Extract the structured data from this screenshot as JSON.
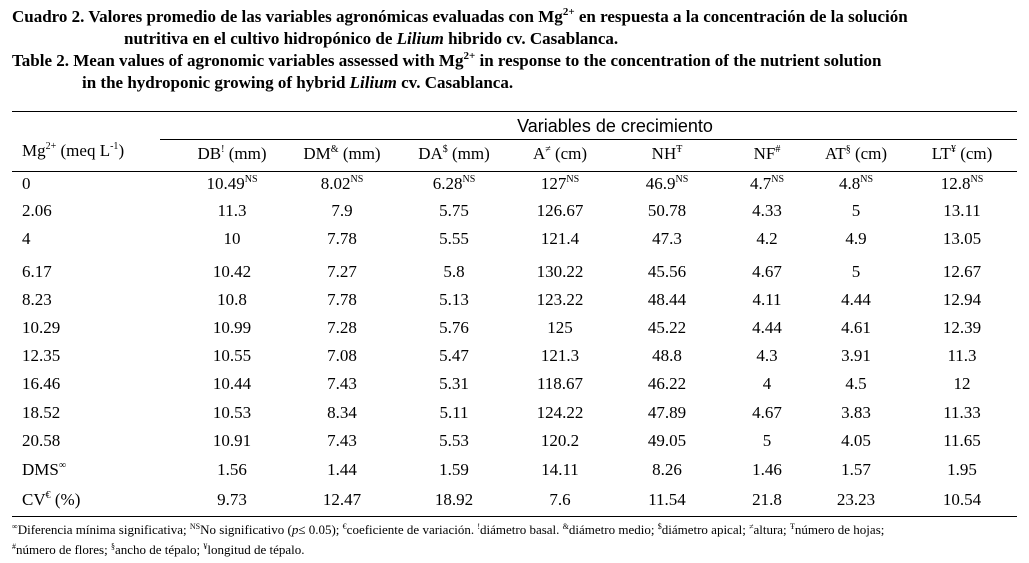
{
  "title": {
    "es_line1": "Cuadro 2. Valores promedio de las variables agronómicas evaluadas con Mg",
    "es_line1_sup": "2+",
    "es_line1_tail": " en respuesta a la concentración de la solución",
    "es_line2_pre": "nutritiva en el cultivo hidropónico de ",
    "es_line2_italic": "Lilium",
    "es_line2_post": " hibrido cv. Casablanca.",
    "en_line1": "Table 2. Mean values of agronomic variables assessed with Mg",
    "en_line1_sup": "2+",
    "en_line1_tail": " in response to the concentration of the nutrient solution",
    "en_line2_pre": "in the hydroponic growing of hybrid ",
    "en_line2_italic": "Lilium",
    "en_line2_post": " cv. Casablanca."
  },
  "table": {
    "group_header": "Variables de crecimiento",
    "row_header": {
      "label": "Mg",
      "sup": "2+",
      "unit": " (meq L",
      "unit_sup": "-1",
      "close": ")"
    },
    "columns": [
      {
        "abbr": "DB",
        "sup": "!",
        "unit": " (mm)"
      },
      {
        "abbr": "DM",
        "sup": "&",
        "unit": " (mm)"
      },
      {
        "abbr": "DA",
        "sup": "$",
        "unit": " (mm)"
      },
      {
        "abbr": "A",
        "sup": "≠",
        "unit": " (cm)"
      },
      {
        "abbr": "NH",
        "sup": "Ŧ",
        "unit": ""
      },
      {
        "abbr": "NF",
        "sup": "#",
        "unit": ""
      },
      {
        "abbr": "AT",
        "sup": "§",
        "unit": " (cm)"
      },
      {
        "abbr": "LT",
        "sup": "¥",
        "unit": " (cm)"
      }
    ],
    "first_row": {
      "label": "0",
      "values": [
        "10.49",
        "8.02",
        "6.28",
        "127",
        "46.9",
        "4.7",
        "4.8",
        "12.8"
      ],
      "sup": "NS"
    },
    "rows": [
      {
        "label": "2.06",
        "values": [
          "11.3",
          "7.9",
          "5.75",
          "126.67",
          "50.78",
          "4.33",
          "5",
          "13.11"
        ]
      },
      {
        "label": "4",
        "values": [
          "10",
          "7.78",
          "5.55",
          "121.4",
          "47.3",
          "4.2",
          "4.9",
          "13.05"
        ]
      },
      {
        "label": "6.17",
        "values": [
          "10.42",
          "7.27",
          "5.8",
          "130.22",
          "45.56",
          "4.67",
          "5",
          "12.67"
        ]
      },
      {
        "label": "8.23",
        "values": [
          "10.8",
          "7.78",
          "5.13",
          "123.22",
          "48.44",
          "4.11",
          "4.44",
          "12.94"
        ]
      },
      {
        "label": "10.29",
        "values": [
          "10.99",
          "7.28",
          "5.76",
          "125",
          "45.22",
          "4.44",
          "4.61",
          "12.39"
        ]
      },
      {
        "label": "12.35",
        "values": [
          "10.55",
          "7.08",
          "5.47",
          "121.3",
          "48.8",
          "4.3",
          "3.91",
          "11.3"
        ]
      },
      {
        "label": "16.46",
        "values": [
          "10.44",
          "7.43",
          "5.31",
          "118.67",
          "46.22",
          "4",
          "4.5",
          "12"
        ]
      },
      {
        "label": "18.52",
        "values": [
          "10.53",
          "8.34",
          "5.11",
          "124.22",
          "47.89",
          "4.67",
          "3.83",
          "11.33"
        ]
      },
      {
        "label": "20.58",
        "values": [
          "10.91",
          "7.43",
          "5.53",
          "120.2",
          "49.05",
          "5",
          "4.05",
          "11.65"
        ]
      }
    ],
    "dms_row": {
      "label": "DMS",
      "sup": "∞",
      "values": [
        "1.56",
        "1.44",
        "1.59",
        "14.11",
        "8.26",
        "1.46",
        "1.57",
        "1.95"
      ]
    },
    "cv_row": {
      "label": "CV",
      "sup": "€",
      "unit": " (%)",
      "values": [
        "9.73",
        "12.47",
        "18.92",
        "7.6",
        "11.54",
        "21.8",
        "23.23",
        "10.54"
      ]
    }
  },
  "footnote": {
    "s1": "∞",
    "t1": "Diferencia mínima significativa; ",
    "s2": "NS",
    "t2": "No significativo (",
    "t2i": "p",
    "t2b": "≤ 0.05); ",
    "s3": "€",
    "t3": "coeficiente de variación. ",
    "s4": "!",
    "t4": "diámetro basal. ",
    "s5": "&",
    "t5": "diámetro medio; ",
    "s6": "$",
    "t6": "diámetro apical; ",
    "s7": "≠",
    "t7": "altura; ",
    "s8": "Ŧ",
    "t8": "número de hojas;",
    "s9": "#",
    "t9": "número de flores; ",
    "s10": "§",
    "t10": "ancho de tépalo; ",
    "s11": "¥",
    "t11": "longitud de tépalo."
  }
}
